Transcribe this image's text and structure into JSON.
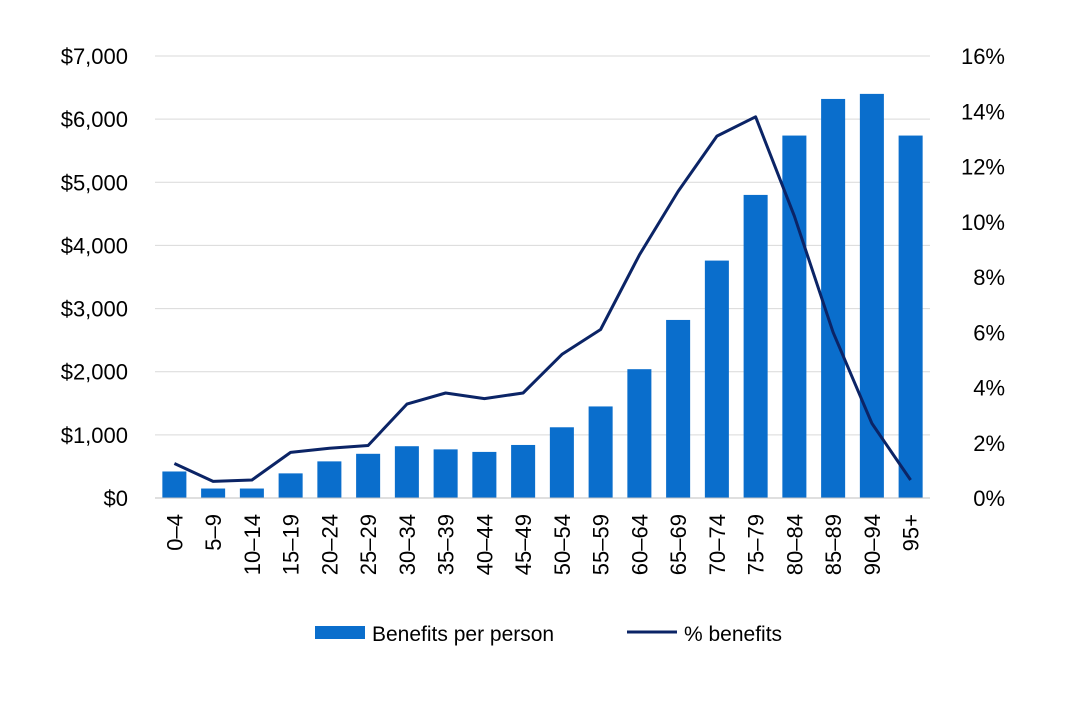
{
  "chart_data": {
    "type": "bar+line",
    "categories": [
      "0–4",
      "5–9",
      "10–14",
      "15–19",
      "20–24",
      "25–29",
      "30–34",
      "35–39",
      "40–44",
      "45–49",
      "50–54",
      "55–59",
      "60–64",
      "65–69",
      "70–74",
      "75–79",
      "80–84",
      "85–89",
      "90–94",
      "95+"
    ],
    "series": [
      {
        "name": "Benefits per person",
        "kind": "bar",
        "axis": "left",
        "color": "#0A6ECC",
        "values": [
          420,
          150,
          150,
          390,
          580,
          700,
          820,
          770,
          730,
          840,
          1120,
          1450,
          2040,
          2820,
          3760,
          4800,
          5740,
          6320,
          6400,
          5740
        ]
      },
      {
        "name": "% benefits",
        "kind": "line",
        "axis": "right",
        "color": "#0B2466",
        "values": [
          1.25,
          0.6,
          0.65,
          1.65,
          1.8,
          1.9,
          3.4,
          3.8,
          3.6,
          3.8,
          5.2,
          6.1,
          8.8,
          11.1,
          13.1,
          13.8,
          10.2,
          6.0,
          2.7,
          0.65
        ]
      }
    ],
    "y_left": {
      "min": 0,
      "max": 7000,
      "step": 1000,
      "ticks": [
        "$0",
        "$1,000",
        "$2,000",
        "$3,000",
        "$4,000",
        "$5,000",
        "$6,000",
        "$7,000"
      ]
    },
    "y_right": {
      "min": 0,
      "max": 16,
      "step": 2,
      "ticks": [
        "0%",
        "2%",
        "4%",
        "6%",
        "8%",
        "10%",
        "12%",
        "14%",
        "16%"
      ]
    },
    "grid": true,
    "gridColor": "#d9d9d9",
    "legend": {
      "position": "bottom",
      "items": [
        "Benefits per person",
        "% benefits"
      ]
    }
  }
}
